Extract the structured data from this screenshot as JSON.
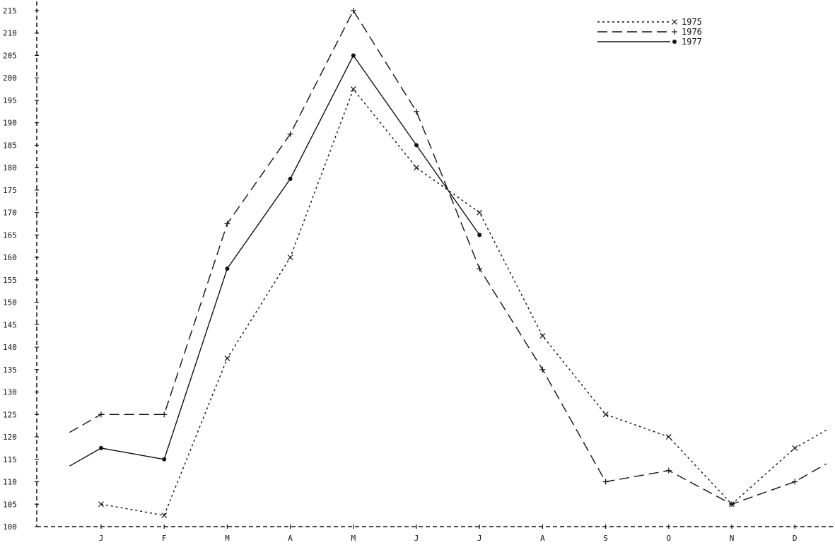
{
  "chart_data": {
    "type": "line",
    "title": "",
    "xlabel": "",
    "ylabel": "",
    "ylim": [
      100,
      217
    ],
    "grid": false,
    "legend_position": "top-right",
    "categories": [
      "J",
      "F",
      "M",
      "A",
      "M",
      "J",
      "J",
      "A",
      "S",
      "O",
      "N",
      "D"
    ],
    "y_ticks": [
      100,
      105,
      110,
      115,
      120,
      125,
      130,
      135,
      140,
      145,
      150,
      155,
      160,
      165,
      170,
      175,
      180,
      185,
      190,
      195,
      200,
      205,
      210,
      215
    ],
    "series": [
      {
        "name": "1975",
        "dash": "3,4",
        "marker": "x",
        "x": [
          1,
          2,
          3,
          4,
          5,
          6,
          7,
          8,
          9,
          10,
          11,
          12,
          12.5
        ],
        "values": [
          105,
          102.5,
          137.5,
          160,
          197.5,
          180,
          170,
          142.5,
          125,
          120,
          105,
          117.5,
          121.5
        ]
      },
      {
        "name": "1976",
        "dash": "14,7",
        "marker": "+",
        "x": [
          0.5,
          1,
          2,
          3,
          4,
          5,
          6,
          7,
          8,
          9,
          10,
          11,
          12,
          12.5
        ],
        "values": [
          121,
          125,
          125,
          167.5,
          187.5,
          215,
          192.5,
          157.5,
          135,
          110,
          112.5,
          105,
          110,
          114
        ]
      },
      {
        "name": "1977",
        "dash": "",
        "marker": "dot",
        "x": [
          0.5,
          1,
          2,
          3,
          4,
          5,
          6,
          7
        ],
        "values": [
          113.5,
          117.5,
          115,
          157.5,
          177.5,
          205,
          185,
          165
        ]
      }
    ]
  }
}
